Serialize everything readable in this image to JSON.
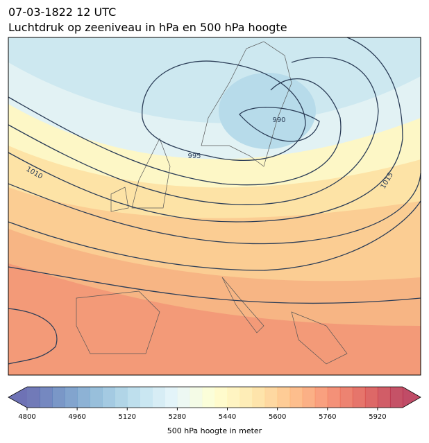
{
  "title": "07-03-1822 12 UTC",
  "subtitle": "Luchtdruk op zeeniveau in hPa en 500 hPa hoogte",
  "contour_labels": [
    "995",
    "990",
    "1010",
    "1015"
  ],
  "colorbar": {
    "lim": [
      4800,
      6000
    ],
    "step": 40,
    "ticks": [
      4800,
      4960,
      5120,
      5280,
      5440,
      5600,
      5760,
      5920
    ],
    "label": "500 hPa hoogte in meter"
  }
}
